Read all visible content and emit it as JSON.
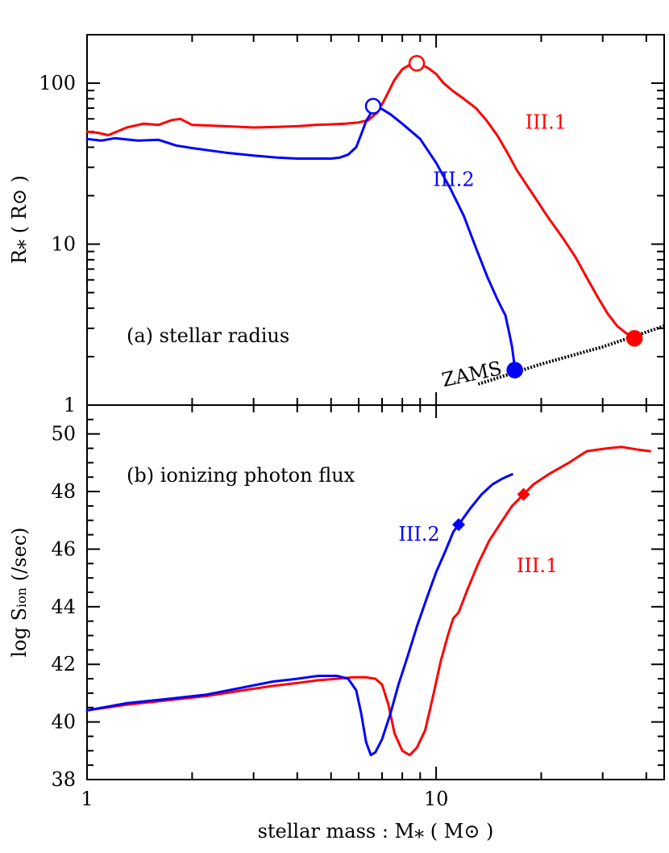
{
  "figure": {
    "xlabel": "stellar mass :  M⁎ ( M⊙ )",
    "xaxis": {
      "scale": "log",
      "xlim": [
        1,
        45
      ],
      "major_ticks": [
        1,
        10
      ],
      "tick_labels": [
        "1",
        "10"
      ]
    }
  },
  "chart_data": [
    {
      "type": "line",
      "panel_label": "(a) stellar radius",
      "ylabel": "R⁎ ( R⊙ )",
      "yscale": "log",
      "ylim": [
        1,
        200
      ],
      "ytick_values": [
        1,
        10,
        100
      ],
      "ytick_labels": [
        "1",
        "10",
        "100"
      ],
      "series": [
        {
          "name": "III.1",
          "color": "#ff0000",
          "points": [
            [
              1.0,
              50
            ],
            [
              1.08,
              49
            ],
            [
              1.15,
              47.5
            ],
            [
              1.3,
              53
            ],
            [
              1.45,
              56
            ],
            [
              1.6,
              55
            ],
            [
              1.75,
              59
            ],
            [
              1.85,
              60
            ],
            [
              2.0,
              55
            ],
            [
              2.5,
              54
            ],
            [
              3.0,
              53
            ],
            [
              3.5,
              53.5
            ],
            [
              4.0,
              54
            ],
            [
              4.5,
              55
            ],
            [
              5.0,
              55.5
            ],
            [
              5.5,
              56
            ],
            [
              6.0,
              57
            ],
            [
              6.4,
              59
            ],
            [
              6.8,
              66
            ],
            [
              7.2,
              83
            ],
            [
              7.6,
              105
            ],
            [
              8.0,
              122
            ],
            [
              8.5,
              132
            ],
            [
              9.0,
              131
            ],
            [
              9.5,
              124
            ],
            [
              10.0,
              114
            ],
            [
              10.5,
              100
            ],
            [
              11.2,
              89
            ],
            [
              12.0,
              80
            ],
            [
              13.0,
              70
            ],
            [
              14.0,
              58
            ],
            [
              15.0,
              47
            ],
            [
              16.0,
              37
            ],
            [
              17.0,
              29
            ],
            [
              18.0,
              24
            ],
            [
              19.5,
              18.5
            ],
            [
              21.0,
              14.5
            ],
            [
              23.0,
              11
            ],
            [
              25.0,
              8.4
            ],
            [
              27.0,
              6.2
            ],
            [
              29.0,
              4.7
            ],
            [
              31.0,
              3.7
            ],
            [
              33.0,
              3.1
            ],
            [
              35.0,
              2.8
            ],
            [
              37.0,
              2.6
            ]
          ],
          "marker_start": {
            "x": 8.8,
            "y": 133,
            "style": "open-circle"
          },
          "marker_end": {
            "x": 37.0,
            "y": 2.6,
            "style": "filled-circle"
          },
          "label": {
            "text": "III.1",
            "x": 18,
            "y": 52
          }
        },
        {
          "name": "III.2",
          "color": "#0000ff",
          "points": [
            [
              1.0,
              45
            ],
            [
              1.1,
              44
            ],
            [
              1.2,
              45.5
            ],
            [
              1.4,
              44
            ],
            [
              1.6,
              44.5
            ],
            [
              1.8,
              41
            ],
            [
              2.0,
              39.5
            ],
            [
              2.5,
              37
            ],
            [
              3.0,
              35.5
            ],
            [
              3.5,
              34.5
            ],
            [
              4.0,
              34
            ],
            [
              4.5,
              34
            ],
            [
              5.0,
              34
            ],
            [
              5.3,
              34.5
            ],
            [
              5.6,
              36
            ],
            [
              5.9,
              40
            ],
            [
              6.1,
              48
            ],
            [
              6.3,
              58
            ],
            [
              6.5,
              65
            ],
            [
              6.7,
              70
            ],
            [
              7.0,
              69
            ],
            [
              7.4,
              64
            ],
            [
              8.0,
              56
            ],
            [
              9.0,
              45
            ],
            [
              10.0,
              32
            ],
            [
              11.0,
              22
            ],
            [
              12.0,
              15
            ],
            [
              13.0,
              9.5
            ],
            [
              14.0,
              6.3
            ],
            [
              15.0,
              4.5
            ],
            [
              15.8,
              3.6
            ],
            [
              16.2,
              2.8
            ],
            [
              16.5,
              2.3
            ],
            [
              16.8,
              1.7
            ]
          ],
          "marker_start": {
            "x": 6.6,
            "y": 72,
            "style": "open-circle"
          },
          "marker_end": {
            "x": 16.8,
            "y": 1.65,
            "style": "filled-circle"
          },
          "label": {
            "text": "III.2",
            "x": 9.8,
            "y": 23
          }
        },
        {
          "name": "ZAMS",
          "color": "#000000",
          "style": "dotted",
          "points": [
            [
              13.2,
              1.35
            ],
            [
              20.0,
              1.8
            ],
            [
              30.0,
              2.3
            ],
            [
              45.0,
              3.1
            ]
          ],
          "label": {
            "text": "ZAMS",
            "x": 10.5,
            "y": 1.3
          }
        }
      ]
    },
    {
      "type": "line",
      "panel_label": "(b) ionizing photon flux",
      "ylabel": "log Sᵢₒₙ (/sec)",
      "ylabel_main": "log S",
      "ylabel_sub": "ion",
      "ylabel_unit": "(/sec)",
      "yscale": "linear",
      "ylim": [
        38,
        51
      ],
      "ytick_values": [
        38,
        40,
        42,
        44,
        46,
        48,
        50
      ],
      "ytick_labels": [
        "38",
        "40",
        "42",
        "44",
        "46",
        "48",
        "50"
      ],
      "series": [
        {
          "name": "III.1",
          "color": "#ff0000",
          "points": [
            [
              1.0,
              40.4
            ],
            [
              1.3,
              40.6
            ],
            [
              1.7,
              40.75
            ],
            [
              2.2,
              40.9
            ],
            [
              2.8,
              41.1
            ],
            [
              3.4,
              41.25
            ],
            [
              4.0,
              41.35
            ],
            [
              4.6,
              41.45
            ],
            [
              5.2,
              41.5
            ],
            [
              5.8,
              41.55
            ],
            [
              6.3,
              41.55
            ],
            [
              6.7,
              41.5
            ],
            [
              7.0,
              41.3
            ],
            [
              7.3,
              40.6
            ],
            [
              7.6,
              39.6
            ],
            [
              8.0,
              39.0
            ],
            [
              8.4,
              38.85
            ],
            [
              8.8,
              39.1
            ],
            [
              9.3,
              39.7
            ],
            [
              9.8,
              40.9
            ],
            [
              10.3,
              42.1
            ],
            [
              10.8,
              43.0
            ],
            [
              11.2,
              43.6
            ],
            [
              11.6,
              43.8
            ],
            [
              12.3,
              44.6
            ],
            [
              13.2,
              45.5
            ],
            [
              14.2,
              46.3
            ],
            [
              15.3,
              46.9
            ],
            [
              16.5,
              47.5
            ],
            [
              17.8,
              47.9
            ],
            [
              19.0,
              48.25
            ],
            [
              21.0,
              48.6
            ],
            [
              24.0,
              49.0
            ],
            [
              27.0,
              49.4
            ],
            [
              31.0,
              49.5
            ],
            [
              34.0,
              49.55
            ],
            [
              38.0,
              49.45
            ],
            [
              41.0,
              49.4
            ]
          ],
          "marker": {
            "x": 17.8,
            "y": 47.9,
            "style": "filled-diamond"
          },
          "label": {
            "text": "III.1",
            "x": 17,
            "y": 45.2
          }
        },
        {
          "name": "III.2",
          "color": "#0000ff",
          "points": [
            [
              1.0,
              40.4
            ],
            [
              1.3,
              40.65
            ],
            [
              1.7,
              40.8
            ],
            [
              2.2,
              40.95
            ],
            [
              2.8,
              41.2
            ],
            [
              3.4,
              41.4
            ],
            [
              4.0,
              41.5
            ],
            [
              4.6,
              41.6
            ],
            [
              5.2,
              41.6
            ],
            [
              5.6,
              41.5
            ],
            [
              5.9,
              41.1
            ],
            [
              6.1,
              40.3
            ],
            [
              6.3,
              39.3
            ],
            [
              6.5,
              38.85
            ],
            [
              6.7,
              38.95
            ],
            [
              7.0,
              39.4
            ],
            [
              7.4,
              40.3
            ],
            [
              7.8,
              41.3
            ],
            [
              8.3,
              42.3
            ],
            [
              8.8,
              43.3
            ],
            [
              9.4,
              44.3
            ],
            [
              10.0,
              45.2
            ],
            [
              10.6,
              45.9
            ],
            [
              11.2,
              46.6
            ],
            [
              11.6,
              46.85
            ],
            [
              12.5,
              47.4
            ],
            [
              13.5,
              47.9
            ],
            [
              14.5,
              48.25
            ],
            [
              15.5,
              48.45
            ],
            [
              16.5,
              48.6
            ]
          ],
          "marker": {
            "x": 11.6,
            "y": 46.85,
            "style": "filled-diamond"
          },
          "label": {
            "text": "III.2",
            "x": 7.8,
            "y": 46.3
          }
        }
      ]
    }
  ]
}
